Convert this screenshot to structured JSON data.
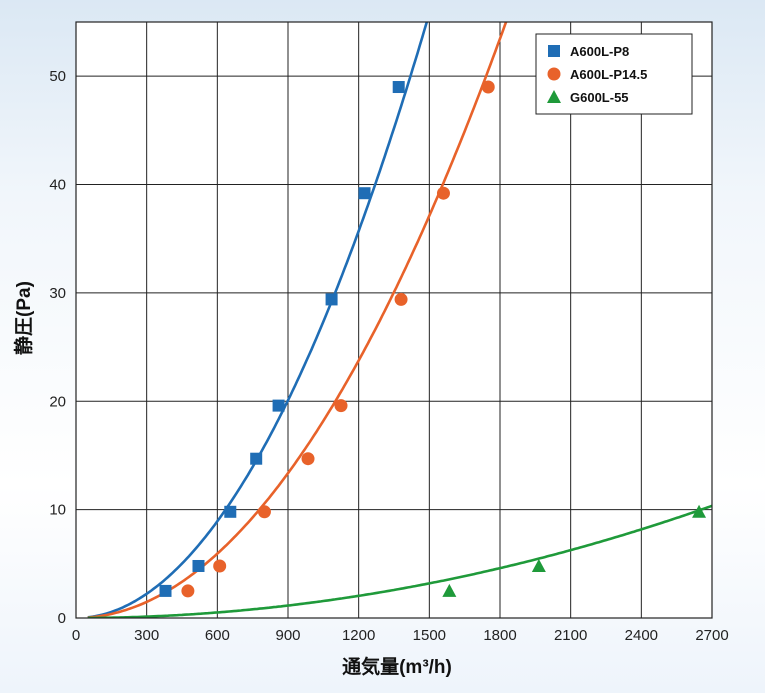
{
  "chart_data": {
    "type": "scatter",
    "title": "",
    "xlabel": "通気量(m³/h)",
    "ylabel": "静圧(Pa)",
    "xlim": [
      0,
      2700
    ],
    "ylim": [
      0,
      55
    ],
    "x_ticks": [
      0,
      300,
      600,
      900,
      1200,
      1500,
      1800,
      2100,
      2400,
      2700
    ],
    "y_ticks": [
      0,
      10,
      20,
      30,
      40,
      50
    ],
    "grid": true,
    "legend_position": "top-right",
    "series": [
      {
        "name": "A600L-P8",
        "color": "#1f6db5",
        "marker": "square",
        "points": [
          [
            380,
            2.5
          ],
          [
            520,
            4.8
          ],
          [
            655,
            9.8
          ],
          [
            765,
            14.7
          ],
          [
            860,
            19.6
          ],
          [
            1085,
            29.4
          ],
          [
            1225,
            39.2
          ],
          [
            1370,
            49.0
          ]
        ],
        "fit_coefficient": 2.48e-05
      },
      {
        "name": "A600L-P14.5",
        "color": "#e8622a",
        "marker": "circle",
        "points": [
          [
            475,
            2.5
          ],
          [
            610,
            4.8
          ],
          [
            800,
            9.8
          ],
          [
            985,
            14.7
          ],
          [
            1125,
            19.6
          ],
          [
            1380,
            29.4
          ],
          [
            1560,
            39.2
          ],
          [
            1750,
            49.0
          ]
        ],
        "fit_coefficient": 1.65e-05
      },
      {
        "name": "G600L-55",
        "color": "#1f9a3a",
        "marker": "triangle",
        "points": [
          [
            1585,
            2.5
          ],
          [
            1965,
            4.8
          ],
          [
            2645,
            9.8
          ]
        ],
        "fit_coefficient": 1.42e-06
      }
    ]
  }
}
